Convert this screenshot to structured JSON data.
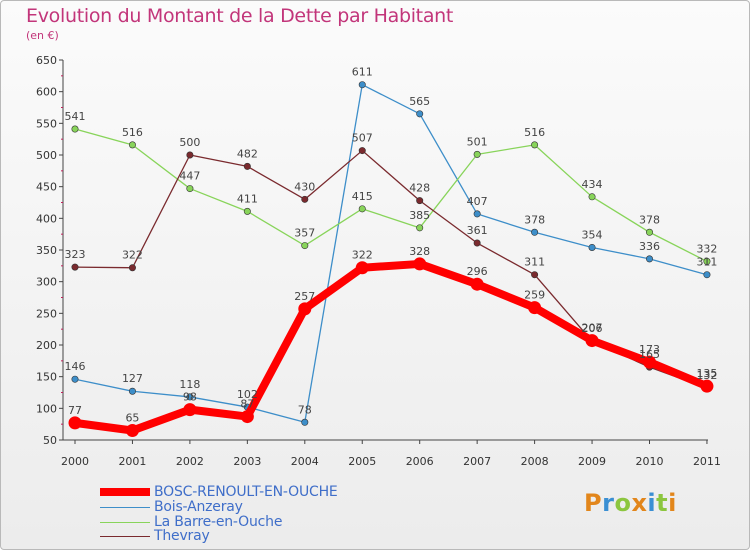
{
  "header": {
    "title": "Evolution du Montant de la Dette par Habitant",
    "subtitle": "(en €)"
  },
  "brand": {
    "text": "Proxiti",
    "colors": [
      "#e2861b",
      "#3a8fd3",
      "#8cc63f",
      "#e2861b",
      "#3a8fd3",
      "#8cc63f",
      "#e2861b"
    ]
  },
  "chart_data": {
    "type": "line",
    "title": "Evolution du Montant de la Dette par Habitant",
    "ylabel": "(en €)",
    "xlabel": "",
    "ylim": [
      50,
      650
    ],
    "yticks": [
      50,
      100,
      150,
      200,
      250,
      300,
      350,
      400,
      450,
      500,
      550,
      600,
      650
    ],
    "categories": [
      "2000",
      "2001",
      "2002",
      "2003",
      "2004",
      "2005",
      "2006",
      "2007",
      "2008",
      "2009",
      "2010",
      "2011"
    ],
    "grid": false,
    "legend_position": "bottom-left",
    "series": [
      {
        "name": "BOSC-RENOULT-EN-OUCHE",
        "color": "#ff0000",
        "emphasis": true,
        "values": [
          77,
          65,
          98,
          87,
          257,
          322,
          328,
          296,
          259,
          207,
          173,
          135
        ],
        "labels": [
          "77",
          "65",
          "98",
          "87",
          "257",
          "322",
          "328",
          "296",
          "259",
          "207",
          "173",
          "135"
        ]
      },
      {
        "name": "Bois-Anzeray",
        "color": "#3d8ec9",
        "values": [
          146,
          127,
          118,
          102,
          78,
          611,
          565,
          407,
          378,
          354,
          336,
          311
        ],
        "labels": [
          "146",
          "127",
          "118",
          "102",
          "78",
          "611",
          "565",
          "407",
          "378",
          "354",
          "336",
          "311"
        ]
      },
      {
        "name": "La Barre-en-Ouche",
        "color": "#88d45a",
        "values": [
          541,
          516,
          447,
          411,
          357,
          415,
          385,
          501,
          516,
          434,
          378,
          332
        ],
        "labels": [
          "541",
          "516",
          "447",
          "411",
          "357",
          "415",
          "385",
          "501",
          "516",
          "434",
          "378",
          "332"
        ]
      },
      {
        "name": "Thevray",
        "color": "#7a2a2e",
        "values": [
          323,
          322,
          500,
          482,
          430,
          507,
          428,
          361,
          311,
          206,
          165,
          132
        ],
        "labels": [
          "323",
          "322",
          "500",
          "482",
          "430",
          "507",
          "428",
          "361",
          "311",
          "206",
          "165",
          "132"
        ]
      }
    ]
  }
}
